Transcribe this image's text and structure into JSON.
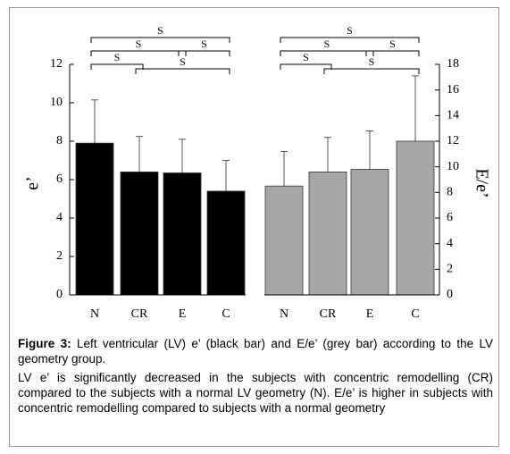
{
  "chart_data": [
    {
      "type": "bar",
      "y_label": "e’",
      "categories": [
        "N",
        "CR",
        "E",
        "C"
      ],
      "values": [
        7.9,
        6.4,
        6.35,
        5.4
      ],
      "errors": [
        2.25,
        1.85,
        1.75,
        1.6
      ],
      "color": "#000000",
      "ylim": [
        0,
        12
      ],
      "yticks": [
        0,
        2,
        4,
        6,
        8,
        10,
        12
      ],
      "axis_side": "left",
      "significance": [
        "S",
        "S",
        "S",
        "S",
        "S"
      ]
    },
    {
      "type": "bar",
      "y_label": "E/e’",
      "categories": [
        "N",
        "CR",
        "E",
        "C"
      ],
      "values": [
        8.5,
        9.6,
        9.8,
        12
      ],
      "errors": [
        2.7,
        2.7,
        3.0,
        5.1
      ],
      "color": "#a6a6a6",
      "ylim": [
        0,
        18
      ],
      "yticks": [
        0,
        2,
        4,
        6,
        8,
        10,
        12,
        14,
        16,
        18
      ],
      "axis_side": "right",
      "significance": [
        "S",
        "S",
        "S",
        "S",
        "S"
      ]
    }
  ],
  "caption": {
    "label": "Figure 3:",
    "title": " Left ventricular (LV) e’ (black bar) and E/e’ (grey bar) according to the LV geometry group.",
    "text": "LV e’ is significantly decreased in the subjects with concentric remodelling (CR) compared to the subjects with a normal LV geometry (N). E/e’ is higher in subjects with concentric remodelling compared to subjects with a normal geometry"
  }
}
